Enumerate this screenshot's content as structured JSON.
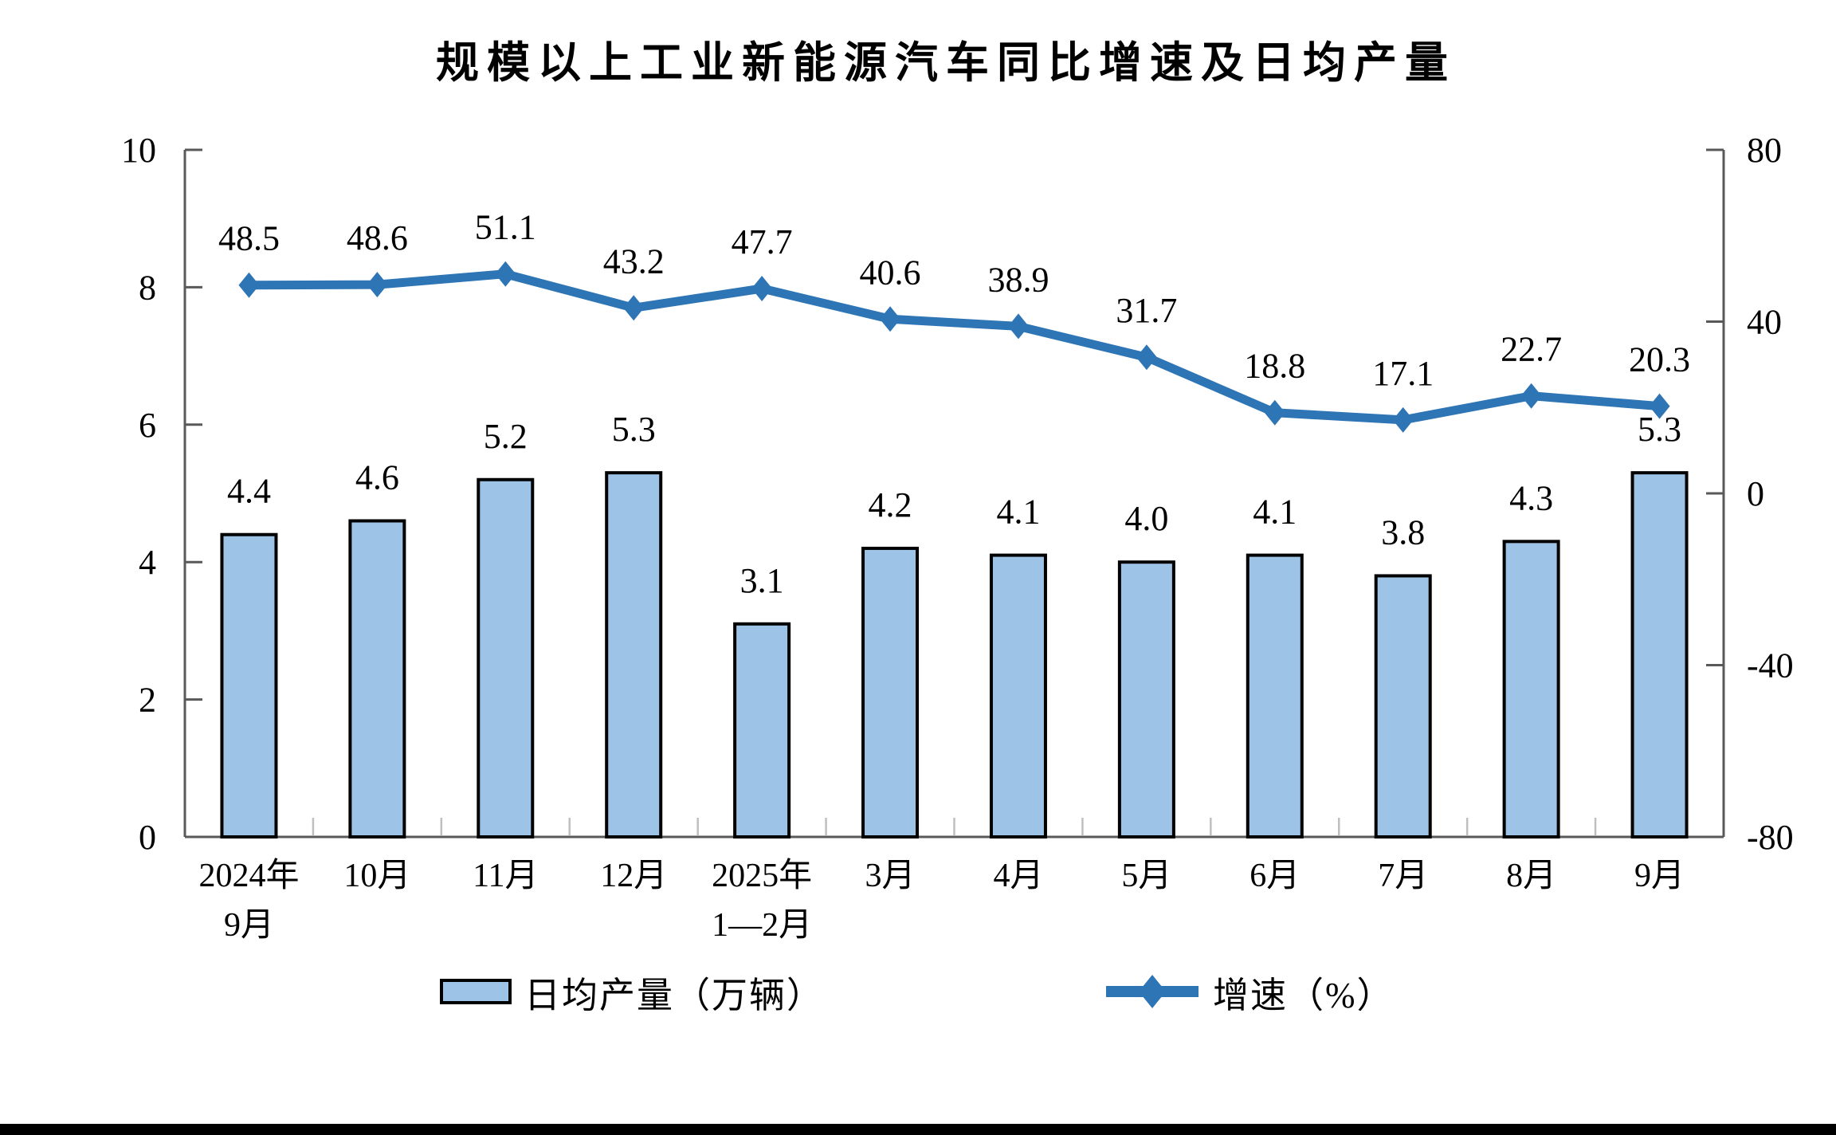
{
  "chart_data": {
    "type": "combo_bar_line",
    "title": "规模以上工业新能源汽车同比增速及日均产量",
    "categories": [
      [
        "2024年",
        "9月"
      ],
      [
        "10月"
      ],
      [
        "11月"
      ],
      [
        "12月"
      ],
      [
        "2025年",
        "1—2月"
      ],
      [
        "3月"
      ],
      [
        "4月"
      ],
      [
        "5月"
      ],
      [
        "6月"
      ],
      [
        "7月"
      ],
      [
        "8月"
      ],
      [
        "9月"
      ]
    ],
    "series": [
      {
        "name": "日均产量（万辆）",
        "type": "bar",
        "axis": "left",
        "color": "#9DC3E6",
        "border_color": "#000000",
        "values": [
          4.4,
          4.6,
          5.2,
          5.3,
          3.1,
          4.2,
          4.1,
          4.0,
          4.1,
          3.8,
          4.3,
          5.3
        ]
      },
      {
        "name": "增速（%）",
        "type": "line",
        "axis": "right",
        "color": "#2E75B6",
        "marker": "diamond",
        "values": [
          48.5,
          48.6,
          51.1,
          43.2,
          47.7,
          40.6,
          38.9,
          31.7,
          18.8,
          17.1,
          22.7,
          20.3
        ]
      }
    ],
    "left_axis": {
      "min": 0,
      "max": 10,
      "ticks": [
        0,
        2,
        4,
        6,
        8,
        10
      ]
    },
    "right_axis": {
      "min": -80,
      "max": 80,
      "ticks": [
        -80,
        -40,
        0,
        40,
        80
      ]
    },
    "legend": [
      "日均产量（万辆）",
      "增速（%）"
    ],
    "legend_position": "bottom",
    "grid": false,
    "data_labels": true,
    "label_decimals": 1
  }
}
